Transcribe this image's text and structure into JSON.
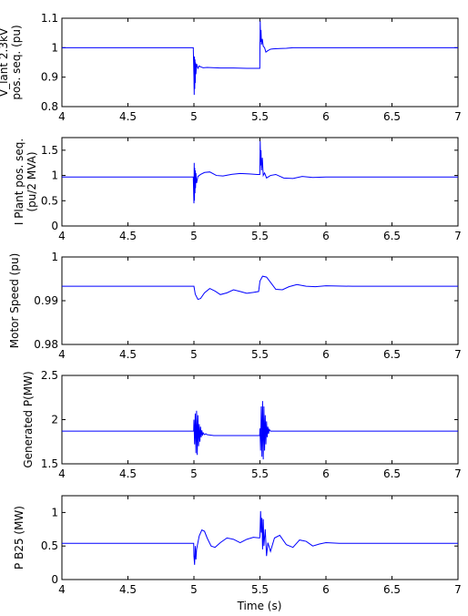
{
  "figure": {
    "xlabel": "Time (s)"
  },
  "chart_data": [
    {
      "type": "line",
      "ylabel_lines": [
        "V_lant 2.3kV",
        "pos. seq. (pu)"
      ],
      "xlim": [
        4,
        7
      ],
      "ylim": [
        0.8,
        1.1
      ],
      "xticks": [
        "4",
        "4.5",
        "5",
        "5.5",
        "6",
        "6.5",
        "7"
      ],
      "yticks": [
        "0.8",
        "0.9",
        "1",
        "1.1"
      ],
      "grid": false,
      "series": [
        {
          "color": "#0000ff",
          "x": [
            4,
            4.995,
            5.0,
            5.002,
            5.004,
            5.006,
            5.008,
            5.01,
            5.012,
            5.015,
            5.02,
            5.03,
            5.04,
            5.05,
            5.07,
            5.1,
            5.2,
            5.3,
            5.4,
            5.499,
            5.5,
            5.502,
            5.505,
            5.508,
            5.512,
            5.518,
            5.525,
            5.535,
            5.545,
            5.56,
            5.58,
            5.6,
            5.65,
            5.7,
            5.75,
            7.0
          ],
          "y": [
            1.0,
            1.0,
            0.9,
            0.84,
            0.97,
            0.86,
            0.96,
            0.88,
            0.95,
            0.91,
            0.945,
            0.93,
            0.938,
            0.935,
            0.932,
            0.933,
            0.931,
            0.931,
            0.93,
            0.93,
            1.0,
            1.09,
            1.02,
            1.06,
            1.01,
            1.03,
            1.005,
            1.0,
            0.985,
            0.99,
            0.995,
            0.996,
            0.997,
            0.998,
            1.0,
            1.0
          ]
        }
      ]
    },
    {
      "type": "line",
      "ylabel_lines": [
        "I Plant pos. seq.",
        "(pu/2 MVA)"
      ],
      "xlim": [
        4,
        7
      ],
      "ylim": [
        0,
        1.75
      ],
      "xticks": [
        "4",
        "4.5",
        "5",
        "5.5",
        "6",
        "6.5",
        "7"
      ],
      "yticks": [
        "0",
        "0.5",
        "1",
        "1.5"
      ],
      "grid": false,
      "series": [
        {
          "color": "#0000ff",
          "x": [
            4,
            4.995,
            5.0,
            5.002,
            5.004,
            5.006,
            5.008,
            5.01,
            5.012,
            5.015,
            5.02,
            5.03,
            5.05,
            5.08,
            5.12,
            5.17,
            5.22,
            5.28,
            5.35,
            5.42,
            5.48,
            5.499,
            5.5,
            5.502,
            5.505,
            5.508,
            5.512,
            5.518,
            5.525,
            5.535,
            5.55,
            5.58,
            5.62,
            5.68,
            5.75,
            5.82,
            5.9,
            6.0,
            7.0
          ],
          "y": [
            0.97,
            0.97,
            0.45,
            1.25,
            0.5,
            1.15,
            0.65,
            1.1,
            0.75,
            1.05,
            0.85,
            0.98,
            1.02,
            1.06,
            1.07,
            1.0,
            0.99,
            1.02,
            1.04,
            1.03,
            1.02,
            1.02,
            1.3,
            1.68,
            1.2,
            1.5,
            1.1,
            1.35,
            1.0,
            1.05,
            0.95,
            1.0,
            1.02,
            0.95,
            0.94,
            0.98,
            0.96,
            0.97,
            0.97
          ]
        }
      ]
    },
    {
      "type": "line",
      "ylabel_lines": [
        "Motor Speed (pu)"
      ],
      "xlim": [
        4,
        7
      ],
      "ylim": [
        0.98,
        1.0
      ],
      "xticks": [
        "4",
        "4.5",
        "5",
        "5.5",
        "6",
        "6.5",
        "7"
      ],
      "yticks": [
        "0.98",
        "0.99",
        "1"
      ],
      "grid": false,
      "series": [
        {
          "color": "#0000ff",
          "x": [
            4,
            5.0,
            5.01,
            5.03,
            5.05,
            5.08,
            5.12,
            5.16,
            5.2,
            5.25,
            5.3,
            5.35,
            5.4,
            5.45,
            5.49,
            5.5,
            5.52,
            5.55,
            5.58,
            5.62,
            5.67,
            5.72,
            5.78,
            5.85,
            5.92,
            6.0,
            6.2,
            6.5,
            7.0
          ],
          "y": [
            0.9933,
            0.9933,
            0.9915,
            0.9903,
            0.9905,
            0.9918,
            0.9928,
            0.9922,
            0.9914,
            0.9918,
            0.9925,
            0.9921,
            0.9917,
            0.9919,
            0.9921,
            0.9945,
            0.9956,
            0.9954,
            0.9942,
            0.9926,
            0.9925,
            0.9932,
            0.9937,
            0.9933,
            0.9932,
            0.9934,
            0.9933,
            0.9933,
            0.9933
          ]
        }
      ]
    },
    {
      "type": "line",
      "ylabel_lines": [
        "Generated P(MW)"
      ],
      "xlim": [
        4,
        7
      ],
      "ylim": [
        1.5,
        2.5
      ],
      "xticks": [
        "4",
        "4.5",
        "5",
        "5.5",
        "6",
        "6.5",
        "7"
      ],
      "yticks": [
        "1.5",
        "2",
        "2.5"
      ],
      "grid": false,
      "series": [
        {
          "color": "#0000ff",
          "x": [
            4,
            4.998,
            5.0,
            5.005,
            5.01,
            5.015,
            5.02,
            5.025,
            5.03,
            5.035,
            5.04,
            5.045,
            5.05,
            5.055,
            5.06,
            5.065,
            5.07,
            5.08,
            5.09,
            5.1,
            5.15,
            5.2,
            5.3,
            5.4,
            5.498,
            5.5,
            5.505,
            5.51,
            5.515,
            5.52,
            5.525,
            5.53,
            5.535,
            5.54,
            5.545,
            5.55,
            5.555,
            5.56,
            5.565,
            5.57,
            5.58,
            5.6,
            7.0
          ],
          "y": [
            1.87,
            1.87,
            2.0,
            1.72,
            2.07,
            1.62,
            2.1,
            1.6,
            2.05,
            1.7,
            1.95,
            1.75,
            1.92,
            1.8,
            1.88,
            1.82,
            1.85,
            1.83,
            1.84,
            1.83,
            1.82,
            1.82,
            1.82,
            1.82,
            1.82,
            1.9,
            1.65,
            2.15,
            1.58,
            2.21,
            1.55,
            2.15,
            1.65,
            2.05,
            1.72,
            1.98,
            1.8,
            1.92,
            1.84,
            1.89,
            1.87,
            1.87,
            1.87
          ]
        }
      ]
    },
    {
      "type": "line",
      "ylabel_lines": [
        "P B25 (MW)"
      ],
      "xlim": [
        4,
        7
      ],
      "ylim": [
        0,
        1.25
      ],
      "xticks": [
        "4",
        "4.5",
        "5",
        "5.5",
        "6",
        "6.5",
        "7"
      ],
      "yticks": [
        "0",
        "0.5",
        "1"
      ],
      "grid": false,
      "series": [
        {
          "color": "#0000ff",
          "x": [
            4,
            4.998,
            5.0,
            5.005,
            5.01,
            5.015,
            5.02,
            5.03,
            5.04,
            5.06,
            5.08,
            5.1,
            5.13,
            5.16,
            5.2,
            5.25,
            5.3,
            5.35,
            5.4,
            5.45,
            5.498,
            5.5,
            5.505,
            5.51,
            5.515,
            5.52,
            5.525,
            5.53,
            5.54,
            5.55,
            5.56,
            5.58,
            5.61,
            5.65,
            5.7,
            5.75,
            5.8,
            5.85,
            5.9,
            5.95,
            6.0,
            6.1,
            7.0
          ],
          "y": [
            0.54,
            0.54,
            0.35,
            0.22,
            0.5,
            0.3,
            0.45,
            0.55,
            0.65,
            0.74,
            0.72,
            0.62,
            0.5,
            0.48,
            0.55,
            0.62,
            0.6,
            0.55,
            0.6,
            0.63,
            0.62,
            0.65,
            1.02,
            0.7,
            0.92,
            0.45,
            0.9,
            0.5,
            0.75,
            0.35,
            0.55,
            0.42,
            0.62,
            0.66,
            0.52,
            0.48,
            0.59,
            0.57,
            0.5,
            0.53,
            0.55,
            0.54,
            0.54
          ]
        }
      ]
    }
  ]
}
